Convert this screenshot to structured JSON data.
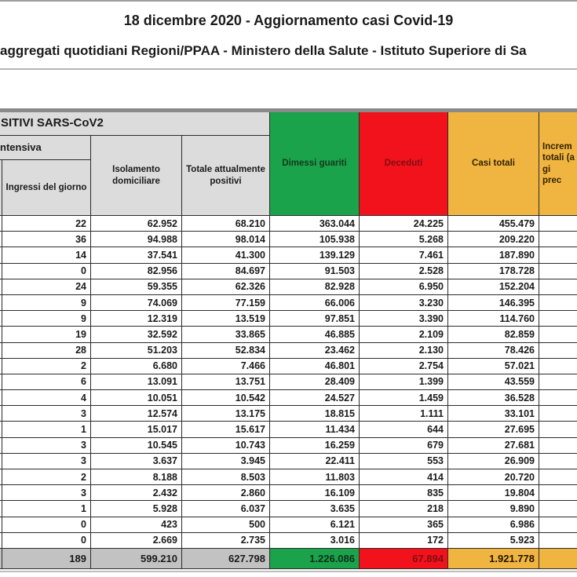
{
  "page": {
    "title": "18 dicembre 2020 - Aggiornamento casi Covid-19",
    "subtitle": "aggregati quotidiani Regioni/PPAA - Ministero della Salute - Istituto Superiore di Sa"
  },
  "table": {
    "group_headers": {
      "positivi": "SITIVI SARS-CoV2",
      "terapia_intensiva": "ntensiva"
    },
    "col_headers": {
      "ingressi": "Ingressi del giorno",
      "isolamento": "Isolamento domiciliare",
      "totale_positivi": "Totale attualmente positivi",
      "dimessi": "Dimessi guariti",
      "deceduti": "Deceduti",
      "casi_totali": "Casi totali",
      "incremento_lines": [
        "Increm",
        "totali (a",
        "gi",
        "prec"
      ]
    }
  },
  "colors": {
    "green": "#1aa34a",
    "red": "#f2121c",
    "yellow": "#f0b541",
    "header_gray": "#dcdcdc",
    "total_gray": "#c2c2c2",
    "deceduti_text": "#7e0e12"
  },
  "chart_data": {
    "type": "table",
    "title": "18 dicembre 2020 - Aggiornamento casi Covid-19",
    "columns": [
      "Ingressi del giorno",
      "Isolamento domiciliare",
      "Totale attualmente positivi",
      "Dimessi guariti",
      "Deceduti",
      "Casi totali"
    ],
    "rows": [
      [
        "22",
        "62.952",
        "68.210",
        "363.044",
        "24.225",
        "455.479"
      ],
      [
        "36",
        "94.988",
        "98.014",
        "105.938",
        "5.268",
        "209.220"
      ],
      [
        "14",
        "37.541",
        "41.300",
        "139.129",
        "7.461",
        "187.890"
      ],
      [
        "0",
        "82.956",
        "84.697",
        "91.503",
        "2.528",
        "178.728"
      ],
      [
        "24",
        "59.355",
        "62.326",
        "82.928",
        "6.950",
        "152.204"
      ],
      [
        "9",
        "74.069",
        "77.159",
        "66.006",
        "3.230",
        "146.395"
      ],
      [
        "9",
        "12.319",
        "13.519",
        "97.851",
        "3.390",
        "114.760"
      ],
      [
        "19",
        "32.592",
        "33.865",
        "46.885",
        "2.109",
        "82.859"
      ],
      [
        "28",
        "51.203",
        "52.834",
        "23.462",
        "2.130",
        "78.426"
      ],
      [
        "2",
        "6.680",
        "7.466",
        "46.801",
        "2.754",
        "57.021"
      ],
      [
        "6",
        "13.091",
        "13.751",
        "28.409",
        "1.399",
        "43.559"
      ],
      [
        "4",
        "10.051",
        "10.542",
        "24.527",
        "1.459",
        "36.528"
      ],
      [
        "3",
        "12.574",
        "13.175",
        "18.815",
        "1.111",
        "33.101"
      ],
      [
        "1",
        "15.017",
        "15.617",
        "11.434",
        "644",
        "27.695"
      ],
      [
        "3",
        "10.545",
        "10.743",
        "16.259",
        "679",
        "27.681"
      ],
      [
        "3",
        "3.637",
        "3.945",
        "22.411",
        "553",
        "26.909"
      ],
      [
        "2",
        "8.188",
        "8.503",
        "11.803",
        "414",
        "20.720"
      ],
      [
        "3",
        "2.432",
        "2.860",
        "16.109",
        "835",
        "19.804"
      ],
      [
        "1",
        "5.928",
        "6.037",
        "3.635",
        "218",
        "9.890"
      ],
      [
        "0",
        "423",
        "500",
        "6.121",
        "365",
        "6.986"
      ],
      [
        "0",
        "2.669",
        "2.735",
        "3.016",
        "172",
        "5.923"
      ]
    ],
    "totals": [
      "189",
      "599.210",
      "627.798",
      "1.226.086",
      "67.894",
      "1.921.778"
    ]
  }
}
